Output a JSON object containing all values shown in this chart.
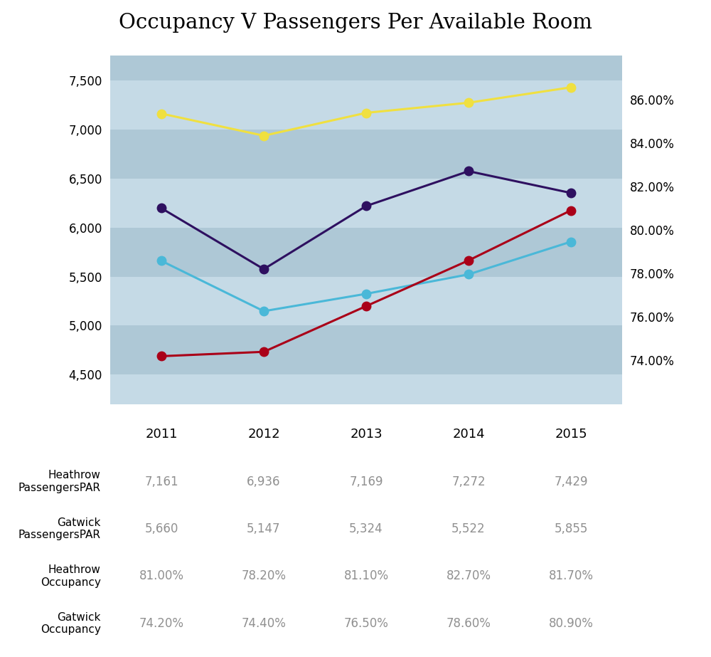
{
  "title": "Occupancy V Passengers Per Available Room",
  "years": [
    2011,
    2012,
    2013,
    2014,
    2015
  ],
  "heathrow_pax": [
    7161,
    6936,
    7169,
    7272,
    7429
  ],
  "gatwick_pax": [
    5660,
    5147,
    5324,
    5522,
    5855
  ],
  "heathrow_occ": [
    0.81,
    0.782,
    0.811,
    0.827,
    0.817
  ],
  "gatwick_occ": [
    0.742,
    0.744,
    0.765,
    0.786,
    0.809
  ],
  "heathrow_pax_color": "#f0e040",
  "gatwick_pax_color": "#4ab8d8",
  "heathrow_occ_color": "#2e1060",
  "gatwick_occ_color": "#aa0018",
  "ylim_left": [
    4200,
    7750
  ],
  "ylim_right": [
    0.72,
    0.88
  ],
  "yticks_left": [
    4500,
    5000,
    5500,
    6000,
    6500,
    7000,
    7500
  ],
  "yticks_right": [
    0.74,
    0.76,
    0.78,
    0.8,
    0.82,
    0.84,
    0.86
  ],
  "chart_bg_light": "#c5dae6",
  "chart_bg_dark": "#aec8d6",
  "table_bg_white": "#ffffff",
  "table_bg_light": "#efefef",
  "table_header_bg": "#e0e0e0",
  "table_labels": [
    "Heathrow\nPassengersPAR",
    "Gatwick\nPassengersPAR",
    "Heathrow\nOccupancy",
    "Gatwick\nOccupancy"
  ],
  "table_indicator_colors": [
    "#f0e040",
    "#4ab8d8",
    "#2e1060",
    "#aa0018"
  ],
  "heathrow_pax_str": [
    "7,161",
    "6,936",
    "7,169",
    "7,272",
    "7,429"
  ],
  "gatwick_pax_str": [
    "5,660",
    "5,147",
    "5,324",
    "5,522",
    "5,855"
  ],
  "heathrow_occ_str": [
    "81.00%",
    "78.20%",
    "81.10%",
    "82.70%",
    "81.70%"
  ],
  "gatwick_occ_str": [
    "74.20%",
    "74.40%",
    "76.50%",
    "78.60%",
    "80.90%"
  ],
  "year_labels": [
    "2011",
    "2012",
    "2013",
    "2014",
    "2015"
  ]
}
